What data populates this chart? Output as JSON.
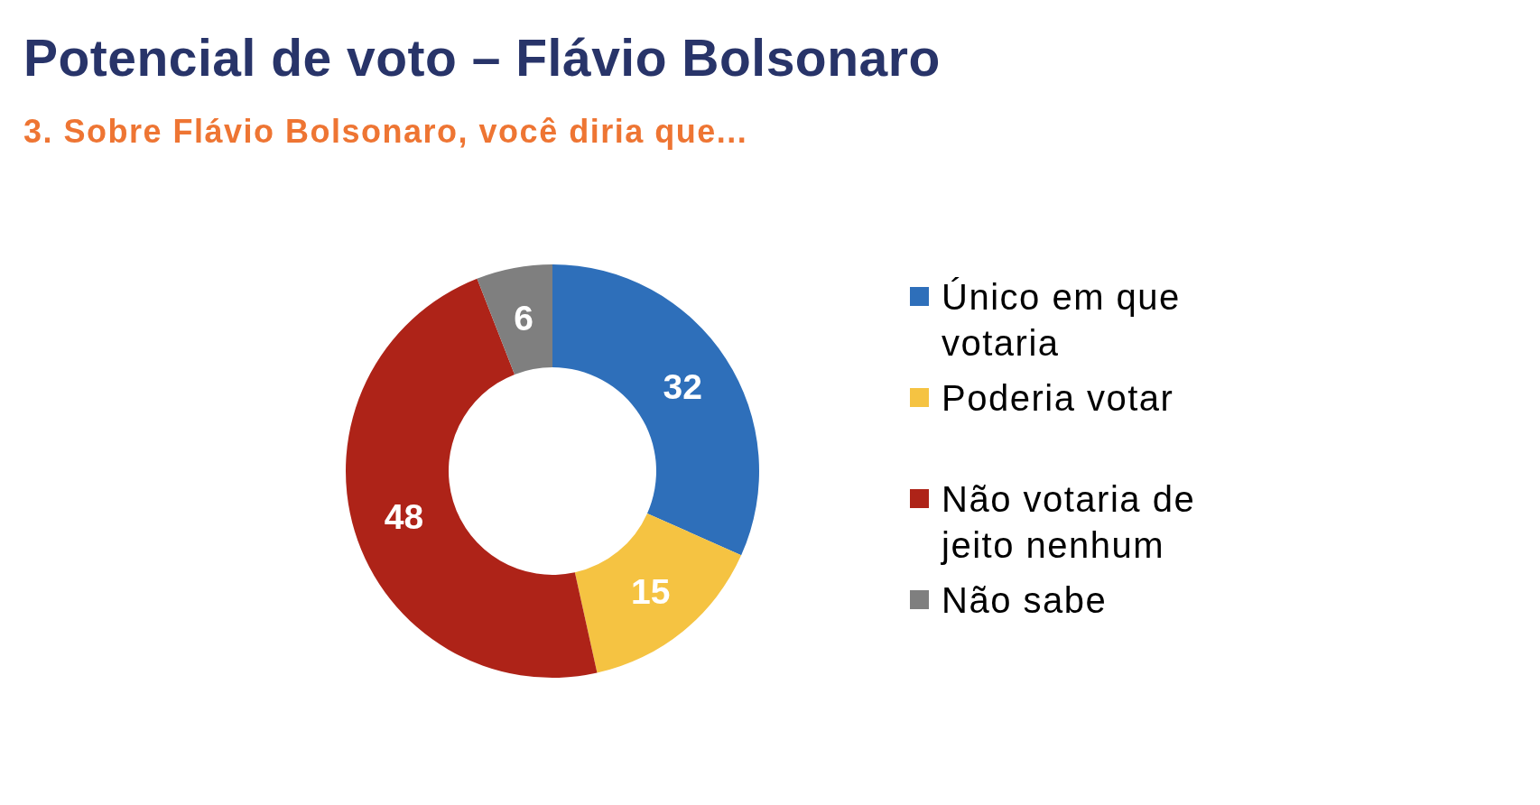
{
  "chart_data": {
    "type": "donut",
    "title": "Potencial de voto – Flávio Bolsonaro",
    "subtitle": "3. Sobre Flávio Bolsonaro, você diria que...",
    "categories": [
      "Único em que votaria",
      "Poderia votar",
      "Não votaria de jeito nenhum",
      "Não sabe"
    ],
    "values": [
      32,
      15,
      48,
      6
    ],
    "colors": [
      "#2e6fba",
      "#f5c342",
      "#ae2318",
      "#7f7f7f"
    ],
    "data_labels": true,
    "legend": "right"
  }
}
